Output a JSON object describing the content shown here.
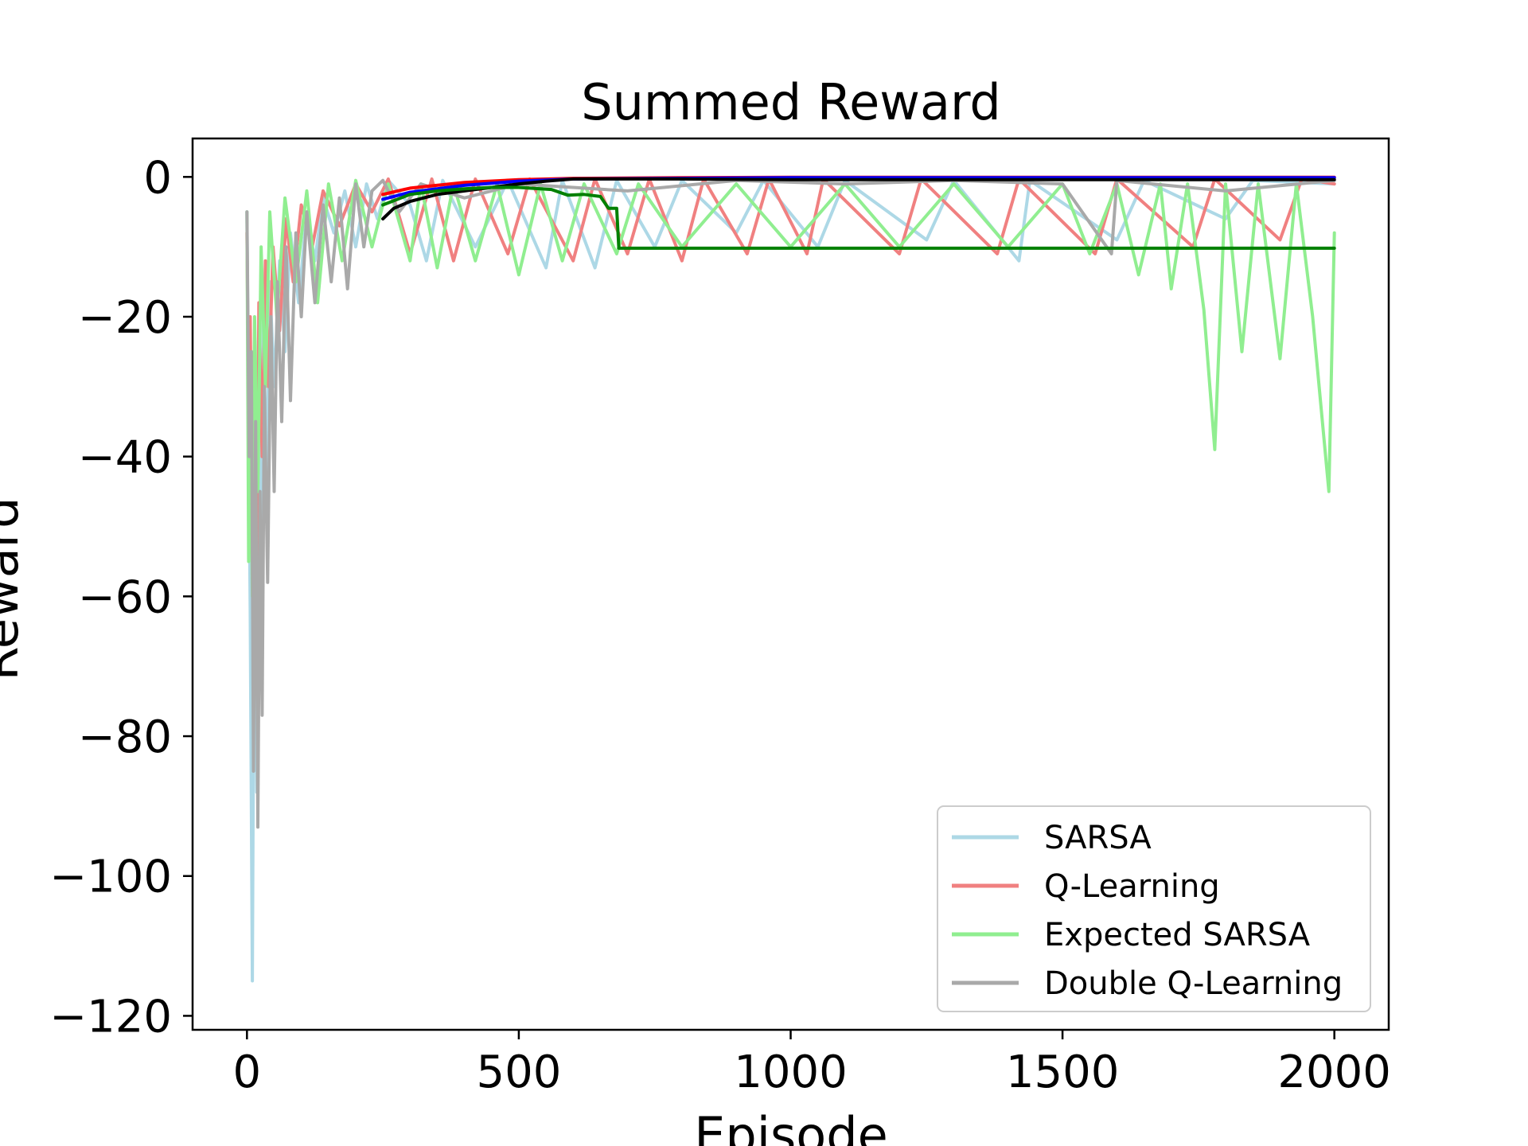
{
  "chart_data": {
    "type": "line",
    "title": "Summed Reward",
    "xlabel": "Episode",
    "ylabel": "Reward",
    "xlim": [
      -100,
      2100
    ],
    "ylim": [
      -122,
      5.5
    ],
    "xticks": [
      0,
      500,
      1000,
      1500,
      2000
    ],
    "yticks": [
      0,
      -20,
      -40,
      -60,
      -80,
      -100,
      -120
    ],
    "xtick_labels": [
      "0",
      "500",
      "1000",
      "1500",
      "2000"
    ],
    "ytick_labels": [
      "0",
      "−20",
      "−40",
      "−60",
      "−80",
      "−100",
      "−120"
    ],
    "grid": false,
    "legend_position": "bottom-right",
    "series": [
      {
        "name": "SARSA",
        "color": "#add8e6",
        "points": [
          [
            0,
            -5
          ],
          [
            3,
            -36
          ],
          [
            6,
            -62
          ],
          [
            10,
            -115
          ],
          [
            14,
            -40
          ],
          [
            18,
            -88
          ],
          [
            22,
            -30
          ],
          [
            26,
            -70
          ],
          [
            30,
            -20
          ],
          [
            36,
            -45
          ],
          [
            42,
            -15
          ],
          [
            50,
            -30
          ],
          [
            60,
            -12
          ],
          [
            70,
            -25
          ],
          [
            80,
            -8
          ],
          [
            95,
            -18
          ],
          [
            110,
            -5
          ],
          [
            125,
            -12
          ],
          [
            140,
            -3
          ],
          [
            160,
            -8
          ],
          [
            180,
            -2
          ],
          [
            200,
            -10
          ],
          [
            220,
            -1
          ],
          [
            240,
            -6
          ],
          [
            260,
            -0.5
          ],
          [
            300,
            -4
          ],
          [
            330,
            -12
          ],
          [
            360,
            -0.5
          ],
          [
            420,
            -10
          ],
          [
            480,
            -0.5
          ],
          [
            550,
            -13
          ],
          [
            580,
            -0.5
          ],
          [
            640,
            -13
          ],
          [
            680,
            -0.5
          ],
          [
            750,
            -10
          ],
          [
            800,
            -0.5
          ],
          [
            900,
            -8
          ],
          [
            950,
            -0.5
          ],
          [
            1050,
            -10
          ],
          [
            1100,
            -0.5
          ],
          [
            1250,
            -9
          ],
          [
            1300,
            -0.5
          ],
          [
            1420,
            -12
          ],
          [
            1440,
            -0.5
          ],
          [
            1600,
            -9
          ],
          [
            1650,
            -0.5
          ],
          [
            1800,
            -6
          ],
          [
            1850,
            -0.5
          ],
          [
            2000,
            -1
          ]
        ]
      },
      {
        "name": "Q-Learning",
        "color": "#f08080",
        "points": [
          [
            0,
            -8
          ],
          [
            3,
            -35
          ],
          [
            6,
            -20
          ],
          [
            10,
            -50
          ],
          [
            14,
            -25
          ],
          [
            18,
            -60
          ],
          [
            22,
            -18
          ],
          [
            28,
            -40
          ],
          [
            34,
            -12
          ],
          [
            40,
            -30
          ],
          [
            48,
            -10
          ],
          [
            60,
            -22
          ],
          [
            72,
            -6
          ],
          [
            85,
            -15
          ],
          [
            100,
            -4
          ],
          [
            120,
            -10
          ],
          [
            140,
            -2
          ],
          [
            170,
            -7
          ],
          [
            200,
            -1
          ],
          [
            230,
            -5
          ],
          [
            260,
            -0.3
          ],
          [
            300,
            -11
          ],
          [
            340,
            -0.3
          ],
          [
            380,
            -12
          ],
          [
            420,
            -0.3
          ],
          [
            480,
            -11
          ],
          [
            520,
            -0.3
          ],
          [
            600,
            -12
          ],
          [
            640,
            -0.3
          ],
          [
            700,
            -11
          ],
          [
            740,
            -0.3
          ],
          [
            800,
            -12
          ],
          [
            840,
            -0.3
          ],
          [
            920,
            -11
          ],
          [
            960,
            -0.3
          ],
          [
            1030,
            -11
          ],
          [
            1060,
            -0.3
          ],
          [
            1200,
            -11
          ],
          [
            1240,
            -0.3
          ],
          [
            1380,
            -11
          ],
          [
            1420,
            -0.3
          ],
          [
            1560,
            -11
          ],
          [
            1600,
            -0.3
          ],
          [
            1740,
            -10
          ],
          [
            1780,
            -0.3
          ],
          [
            1900,
            -9
          ],
          [
            1940,
            -0.3
          ],
          [
            2000,
            -1
          ]
        ]
      },
      {
        "name": "Expected SARSA",
        "color": "#90ee90",
        "points": [
          [
            0,
            -5
          ],
          [
            3,
            -55
          ],
          [
            6,
            -30
          ],
          [
            10,
            -60
          ],
          [
            14,
            -20
          ],
          [
            20,
            -45
          ],
          [
            26,
            -10
          ],
          [
            34,
            -30
          ],
          [
            42,
            -5
          ],
          [
            55,
            -20
          ],
          [
            70,
            -3
          ],
          [
            90,
            -15
          ],
          [
            110,
            -2
          ],
          [
            130,
            -18
          ],
          [
            150,
            -1
          ],
          [
            175,
            -12
          ],
          [
            200,
            -0.5
          ],
          [
            230,
            -10
          ],
          [
            260,
            -1
          ],
          [
            300,
            -12
          ],
          [
            320,
            -1
          ],
          [
            350,
            -13
          ],
          [
            380,
            -1
          ],
          [
            420,
            -12
          ],
          [
            460,
            -1
          ],
          [
            500,
            -14
          ],
          [
            540,
            -1
          ],
          [
            580,
            -12
          ],
          [
            620,
            -1
          ],
          [
            680,
            -11
          ],
          [
            720,
            -1
          ],
          [
            800,
            -10
          ],
          [
            900,
            -1
          ],
          [
            1000,
            -10
          ],
          [
            1100,
            -1
          ],
          [
            1200,
            -10
          ],
          [
            1300,
            -1
          ],
          [
            1400,
            -10
          ],
          [
            1500,
            -1
          ],
          [
            1550,
            -11
          ],
          [
            1600,
            -1
          ],
          [
            1640,
            -14
          ],
          [
            1680,
            -1
          ],
          [
            1700,
            -16
          ],
          [
            1730,
            -1
          ],
          [
            1760,
            -19
          ],
          [
            1780,
            -39
          ],
          [
            1800,
            -1
          ],
          [
            1830,
            -25
          ],
          [
            1860,
            -1
          ],
          [
            1900,
            -26
          ],
          [
            1930,
            -1
          ],
          [
            1960,
            -20
          ],
          [
            1990,
            -45
          ],
          [
            2000,
            -8
          ]
        ]
      },
      {
        "name": "Double Q-Learning",
        "color": "#a9a9a9",
        "points": [
          [
            0,
            -5
          ],
          [
            4,
            -40
          ],
          [
            8,
            -25
          ],
          [
            12,
            -85
          ],
          [
            16,
            -35
          ],
          [
            20,
            -93
          ],
          [
            24,
            -45
          ],
          [
            28,
            -77
          ],
          [
            32,
            -30
          ],
          [
            38,
            -58
          ],
          [
            44,
            -20
          ],
          [
            50,
            -45
          ],
          [
            56,
            -15
          ],
          [
            64,
            -35
          ],
          [
            72,
            -10
          ],
          [
            80,
            -32
          ],
          [
            90,
            -8
          ],
          [
            100,
            -20
          ],
          [
            110,
            -5
          ],
          [
            125,
            -18
          ],
          [
            140,
            -4
          ],
          [
            155,
            -15
          ],
          [
            170,
            -3
          ],
          [
            185,
            -16
          ],
          [
            200,
            -1
          ],
          [
            215,
            -10
          ],
          [
            230,
            -2
          ],
          [
            250,
            -0.5
          ],
          [
            280,
            -5
          ],
          [
            320,
            -1
          ],
          [
            400,
            -3
          ],
          [
            500,
            -1
          ],
          [
            700,
            -2
          ],
          [
            900,
            -0.5
          ],
          [
            1100,
            -1
          ],
          [
            1300,
            -0.5
          ],
          [
            1500,
            -1
          ],
          [
            1590,
            -11
          ],
          [
            1600,
            -0.5
          ],
          [
            1800,
            -2
          ],
          [
            2000,
            -0.5
          ]
        ]
      },
      {
        "name": "",
        "color": "#ff0000",
        "points": [
          [
            250,
            -2.5
          ],
          [
            300,
            -1.6
          ],
          [
            400,
            -0.8
          ],
          [
            500,
            -0.4
          ],
          [
            600,
            -0.2
          ],
          [
            800,
            -0.1
          ],
          [
            1000,
            -0.05
          ],
          [
            2000,
            -0.05
          ]
        ]
      },
      {
        "name": "",
        "color": "#0000ff",
        "points": [
          [
            250,
            -3.2
          ],
          [
            300,
            -2.2
          ],
          [
            400,
            -1.2
          ],
          [
            500,
            -0.6
          ],
          [
            600,
            -0.3
          ],
          [
            800,
            -0.2
          ],
          [
            1000,
            -0.1
          ],
          [
            2000,
            -0.1
          ]
        ]
      },
      {
        "name": "",
        "color": "#000000",
        "points": [
          [
            250,
            -6
          ],
          [
            270,
            -4.5
          ],
          [
            300,
            -3.5
          ],
          [
            350,
            -2.5
          ],
          [
            400,
            -2
          ],
          [
            450,
            -1.5
          ],
          [
            500,
            -1
          ],
          [
            550,
            -0.6
          ],
          [
            600,
            -0.3
          ],
          [
            800,
            -0.3
          ],
          [
            1000,
            -0.4
          ],
          [
            1500,
            -0.4
          ],
          [
            2000,
            -0.4
          ]
        ]
      },
      {
        "name": "",
        "color": "#008000",
        "points": [
          [
            250,
            -4
          ],
          [
            300,
            -2.5
          ],
          [
            350,
            -2
          ],
          [
            400,
            -1.7
          ],
          [
            450,
            -1.5
          ],
          [
            500,
            -1.5
          ],
          [
            560,
            -1.8
          ],
          [
            590,
            -2.6
          ],
          [
            620,
            -2.5
          ],
          [
            650,
            -2.8
          ],
          [
            665,
            -4.5
          ],
          [
            680,
            -4.5
          ],
          [
            684,
            -10.2
          ],
          [
            800,
            -10.2
          ],
          [
            1000,
            -10.2
          ],
          [
            1500,
            -10.2
          ],
          [
            2000,
            -10.2
          ]
        ]
      }
    ]
  }
}
